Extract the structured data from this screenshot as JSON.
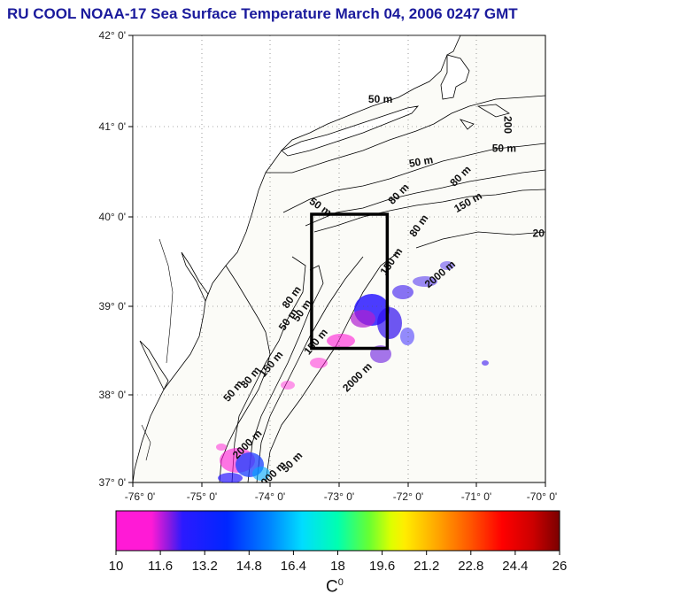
{
  "title": "RU COOL  NOAA-17 Sea Surface Temperature March 04, 2006 0247 GMT",
  "map": {
    "lat_labels": [
      "42° 0'",
      "41° 0'",
      "40° 0'",
      "39° 0'",
      "38° 0'",
      "37° 0'"
    ],
    "lon_labels": [
      "-76° 0'",
      "-75° 0'",
      "-74° 0'",
      "-73° 0'",
      "-72° 0'",
      "-71° 0'",
      "-70° 0'"
    ],
    "lat_range": [
      37,
      42
    ],
    "lon_range": [
      -76,
      -70
    ],
    "study_box": {
      "lon": [
        -73.4,
        -72.3
      ],
      "lat": [
        38.5,
        40.0
      ]
    },
    "contour_labels": [
      {
        "text": "50 m",
        "lon": -72.4,
        "lat": 41.25,
        "rot": 0
      },
      {
        "text": "50 m",
        "lon": -71.8,
        "lat": 40.55,
        "rot": -10
      },
      {
        "text": "50 m",
        "lon": -70.6,
        "lat": 40.7,
        "rot": 0
      },
      {
        "text": "50 m",
        "lon": -73.3,
        "lat": 40.05,
        "rot": 35
      },
      {
        "text": "80 m",
        "lon": -72.1,
        "lat": 40.2,
        "rot": -45
      },
      {
        "text": "80 m",
        "lon": -71.2,
        "lat": 40.4,
        "rot": -45
      },
      {
        "text": "80 m",
        "lon": -71.8,
        "lat": 39.85,
        "rot": -55
      },
      {
        "text": "150 m",
        "lon": -71.1,
        "lat": 40.1,
        "rot": -30
      },
      {
        "text": "150 m",
        "lon": -72.2,
        "lat": 39.45,
        "rot": -55
      },
      {
        "text": "200",
        "lon": -70.6,
        "lat": 41.0,
        "rot": 90
      },
      {
        "text": "20",
        "lon": -70.1,
        "lat": 39.75,
        "rot": 0
      },
      {
        "text": "2000 m",
        "lon": -71.5,
        "lat": 39.3,
        "rot": -40
      },
      {
        "text": "50 m",
        "lon": -73.7,
        "lat": 38.8,
        "rot": -55
      },
      {
        "text": "50 m",
        "lon": -73.5,
        "lat": 38.9,
        "rot": -55
      },
      {
        "text": "80 m",
        "lon": -73.65,
        "lat": 39.05,
        "rot": -55
      },
      {
        "text": "150 m",
        "lon": -73.3,
        "lat": 38.55,
        "rot": -50
      },
      {
        "text": "2000 m",
        "lon": -72.7,
        "lat": 38.15,
        "rot": -45
      },
      {
        "text": "50 m",
        "lon": -74.5,
        "lat": 38.0,
        "rot": -50
      },
      {
        "text": "80 m",
        "lon": -74.25,
        "lat": 38.15,
        "rot": -50
      },
      {
        "text": "150 m",
        "lon": -73.95,
        "lat": 38.3,
        "rot": -50
      },
      {
        "text": "2000 m",
        "lon": -74.3,
        "lat": 37.4,
        "rot": -45
      },
      {
        "text": "2000 m",
        "lon": -73.95,
        "lat": 37.05,
        "rot": -45
      },
      {
        "text": "50 m",
        "lon": -73.65,
        "lat": 37.2,
        "rot": -45
      }
    ]
  },
  "colorbar": {
    "ticks": [
      "10",
      "11.6",
      "13.2",
      "14.8",
      "16.4",
      "18",
      "19.6",
      "21.2",
      "22.8",
      "24.4",
      "26"
    ],
    "range": [
      10,
      26
    ],
    "unit": "C",
    "unit_sup": "0",
    "stops": [
      "#ff1ad6",
      "#ff1ad6",
      "#2b1aff",
      "#0026ff",
      "#0088ff",
      "#00ddff",
      "#00ffb0",
      "#66ff33",
      "#ddff00",
      "#ffee00",
      "#ffaa00",
      "#ff5500",
      "#ff0000",
      "#cc0000",
      "#7a0000"
    ]
  }
}
